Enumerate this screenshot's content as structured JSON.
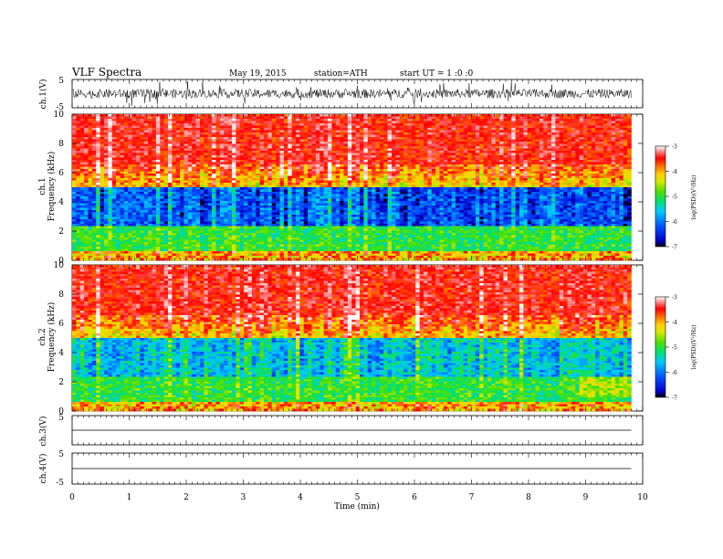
{
  "header": {
    "title": "VLF  Spectra",
    "date": "May 19, 2015",
    "station": "station=ATH",
    "start": "start  UT  =   1 :0 :0"
  },
  "chart_data": [
    {
      "type": "line",
      "ylabel": "ch.1(V)",
      "ylim": [
        -5,
        5
      ],
      "y_ticks": [
        "5",
        "-5"
      ],
      "xlim": [
        0,
        10
      ],
      "data_end_min": 9.8,
      "description_of_signal": "dense noisy waveform centered near 0 V"
    },
    {
      "type": "heatmap",
      "ylabel": [
        "ch.1",
        "Frequency  (kHz)"
      ],
      "ylim": [
        0,
        10
      ],
      "y_ticks": [
        "0",
        "2",
        "4",
        "6",
        "8",
        "10"
      ],
      "xlim": [
        0,
        10
      ],
      "colorbar": {
        "label": "log(PSD)(V²/Hz)",
        "range": [
          -7,
          -3
        ],
        "ticks": [
          "-3",
          "-4",
          "-5",
          "-6",
          "-7"
        ]
      }
    },
    {
      "type": "heatmap",
      "ylabel": [
        "ch.2",
        "Frequency  (kHz)"
      ],
      "ylim": [
        0,
        10
      ],
      "y_ticks": [
        "0",
        "2",
        "4",
        "6",
        "8",
        "10"
      ],
      "xlim": [
        0,
        10
      ],
      "colorbar": {
        "label": "log(PSD)(V²/Hz)",
        "range": [
          -7,
          -3
        ],
        "ticks": [
          "-3",
          "-4",
          "-5",
          "-6",
          "-7"
        ]
      }
    },
    {
      "type": "line",
      "ylabel": "ch.3(V)",
      "ylim": [
        -5,
        5
      ],
      "y_ticks": [
        "5"
      ],
      "xlim": [
        0,
        10
      ],
      "level": 0
    },
    {
      "type": "line",
      "ylabel": "ch.4(V)",
      "ylim": [
        -5,
        5
      ],
      "y_ticks": [
        "5",
        "-5"
      ],
      "xlim": [
        0,
        10
      ],
      "level": 0,
      "xlabel": "Time  (min)",
      "x_ticks": [
        "0",
        "1",
        "2",
        "3",
        "4",
        "5",
        "6",
        "7",
        "8",
        "9",
        "10"
      ]
    }
  ],
  "colors": {
    "scale": [
      "#000000",
      "#0000c8",
      "#0050ff",
      "#00c8ff",
      "#00e070",
      "#50e000",
      "#d8e800",
      "#ffd000",
      "#ff7000",
      "#ff0000",
      "#ffffff"
    ]
  }
}
